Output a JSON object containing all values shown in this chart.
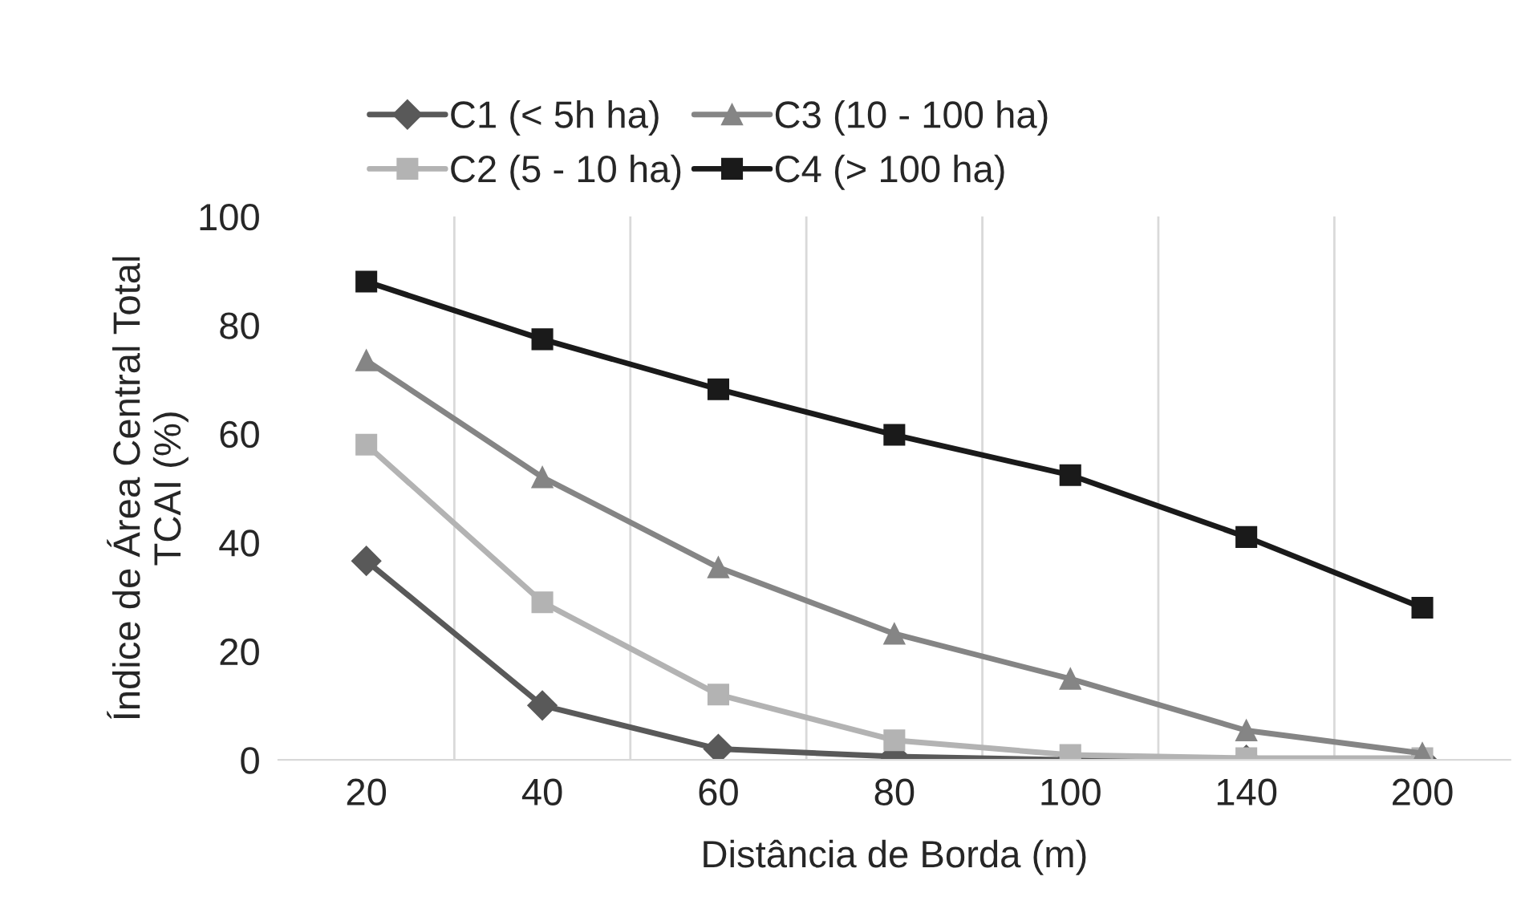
{
  "chart_data": {
    "type": "line",
    "xlabel": "Distância de Borda (m)",
    "ylabel": "Índice de Área Central Total\nTCAI (%)",
    "categories": [
      "20",
      "40",
      "60",
      "80",
      "100",
      "140",
      "200"
    ],
    "series": [
      {
        "name": "C1 (< 5h ha)",
        "color": "#595959",
        "marker": "diamond",
        "values": [
          36.6,
          10,
          2,
          0.6,
          0,
          0,
          0
        ]
      },
      {
        "name": "C2 (5 - 10 ha)",
        "color": "#b3b3b3",
        "marker": "square",
        "values": [
          58,
          29,
          12,
          3.6,
          0.9,
          0.3,
          0.3
        ]
      },
      {
        "name": "C3 (10 - 100 ha)",
        "color": "#858585",
        "marker": "triangle",
        "values": [
          73.5,
          52,
          35.4,
          23.2,
          14.9,
          5.4,
          1.2
        ]
      },
      {
        "name": "C4 (> 100 ha)",
        "color": "#1a1a1a",
        "marker": "square",
        "values": [
          88,
          77.4,
          68.2,
          59.8,
          52.4,
          41,
          28
        ]
      }
    ],
    "ylim": [
      0,
      100
    ],
    "yticks": [
      0,
      20,
      40,
      60,
      80,
      100
    ],
    "grid": "x",
    "legend": "top",
    "line_style": "solid"
  }
}
